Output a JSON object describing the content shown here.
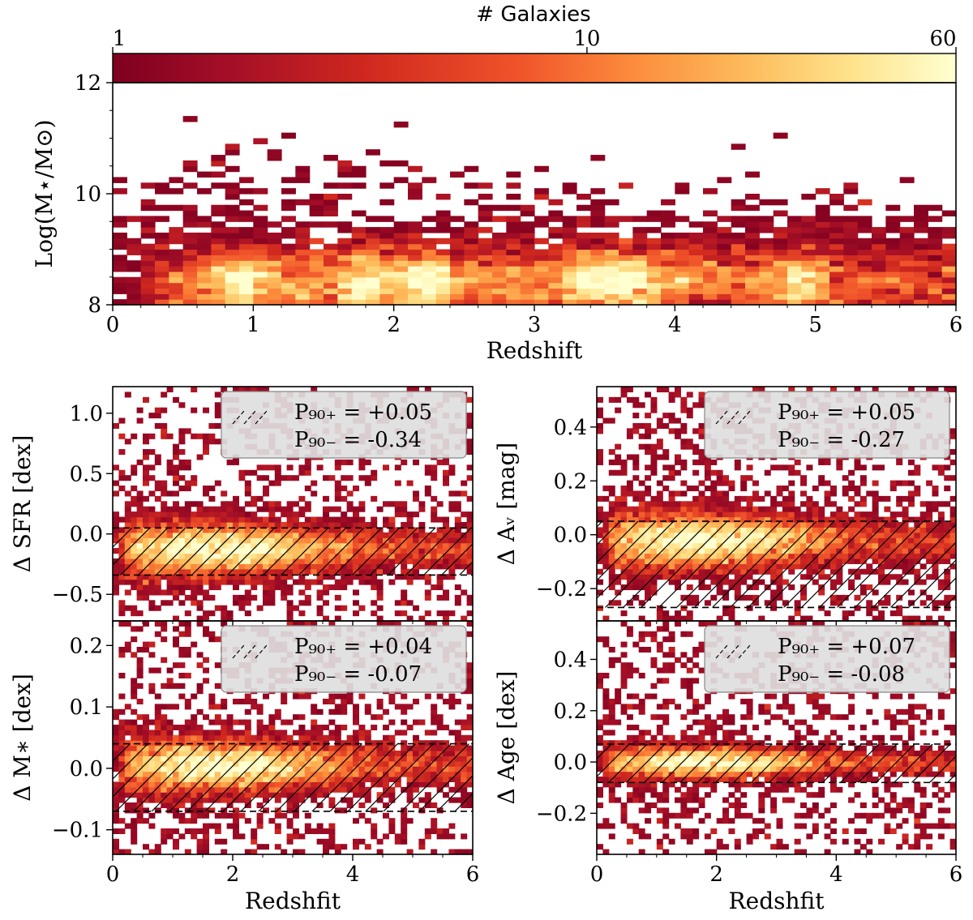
{
  "chart_data": [
    {
      "panel": "top",
      "type": "heatmap",
      "title": "",
      "xlabel": "Redshift",
      "ylabel": "Log(M⋆/M⊙)",
      "xlim": [
        0,
        6
      ],
      "ylim": [
        8,
        12
      ],
      "xticks": [
        0,
        1,
        2,
        3,
        4,
        5,
        6
      ],
      "yticks": [
        8,
        10,
        12
      ],
      "xtick_labels": [
        "0",
        "1",
        "2",
        "3",
        "4",
        "5",
        "6"
      ],
      "ytick_labels": [
        "8",
        "10",
        "12"
      ],
      "colorbar": {
        "label": "# Galaxies",
        "scale": "log",
        "min": 1,
        "max": 60,
        "tick_values": [
          1,
          10,
          60
        ],
        "tick_labels": [
          "1",
          "10",
          "60"
        ],
        "colormap": "YlOrRd_r",
        "stops": [
          "#7f0020",
          "#a50f26",
          "#d0281f",
          "#f0532a",
          "#fc8d3c",
          "#fdbe5e",
          "#fee48e",
          "#ffffd0"
        ]
      },
      "bins": {
        "x_width": 0.1,
        "y_width": 0.1
      },
      "density_peaks_z": [
        0.9,
        1.8,
        2.25,
        3.4,
        3.7,
        4.9
      ],
      "density_ridge_mass": 8.4
    },
    {
      "panel": "delta-sfr",
      "type": "heatmap",
      "xlabel": "",
      "ylabel": "Δ SFR [dex]",
      "xlim": [
        0,
        6
      ],
      "ylim": [
        -0.72,
        1.22
      ],
      "yticks": [
        -0.5,
        0.0,
        0.5,
        1.0
      ],
      "ytick_labels": [
        "−0.5",
        "0.0",
        "0.5",
        "1.0"
      ],
      "p90_plus": 0.05,
      "p90_minus": -0.34,
      "legend": {
        "plus_label": "P₉₀₊  = +0.05",
        "minus_label": "P₉₀₋  = -0.34"
      },
      "scatter": 0.13,
      "center": -0.12
    },
    {
      "panel": "delta-av",
      "type": "heatmap",
      "xlabel": "",
      "ylabel": "Δ Aᵥ [mag]",
      "xlim": [
        0,
        6
      ],
      "ylim": [
        -0.32,
        0.55
      ],
      "yticks": [
        -0.2,
        0.0,
        0.2,
        0.4
      ],
      "ytick_labels": [
        "−0.2",
        "0.0",
        "0.2",
        "0.4"
      ],
      "p90_plus": 0.05,
      "p90_minus": -0.27,
      "legend": {
        "plus_label": "P₉₀₊  = +0.05",
        "minus_label": "P₉₀₋  = -0.27"
      },
      "scatter": 0.06,
      "center": -0.02
    },
    {
      "panel": "delta-mass",
      "type": "heatmap",
      "xlabel": "Redshfit",
      "ylabel": "Δ M∗ [dex]",
      "xlim": [
        0,
        6
      ],
      "ylim": [
        -0.14,
        0.24
      ],
      "xticks": [
        0,
        2,
        4,
        6
      ],
      "xtick_labels": [
        "0",
        "2",
        "4",
        "6"
      ],
      "yticks": [
        -0.1,
        0.0,
        0.1,
        0.2
      ],
      "ytick_labels": [
        "−0.1",
        "0.0",
        "0.1",
        "0.2"
      ],
      "p90_plus": 0.04,
      "p90_minus": -0.07,
      "legend": {
        "plus_label": "P₉₀₊  = +0.04",
        "minus_label": "P₉₀₋  = -0.07"
      },
      "scatter": 0.025,
      "center": 0.005
    },
    {
      "panel": "delta-age",
      "type": "heatmap",
      "xlabel": "Redshfit",
      "ylabel": "Δ Age [dex]",
      "xlim": [
        0,
        6
      ],
      "ylim": [
        -0.36,
        0.55
      ],
      "xticks": [
        0,
        2,
        4,
        6
      ],
      "xtick_labels": [
        "0",
        "2",
        "4",
        "6"
      ],
      "yticks": [
        -0.2,
        0.0,
        0.2,
        0.4
      ],
      "ytick_labels": [
        "−0.2",
        "0.0",
        "0.2",
        "0.4"
      ],
      "p90_plus": 0.07,
      "p90_minus": -0.08,
      "legend": {
        "plus_label": "P₉₀₊  = +0.07",
        "minus_label": "P₉₀₋  = -0.08"
      },
      "scatter": 0.035,
      "center": 0.0
    }
  ]
}
